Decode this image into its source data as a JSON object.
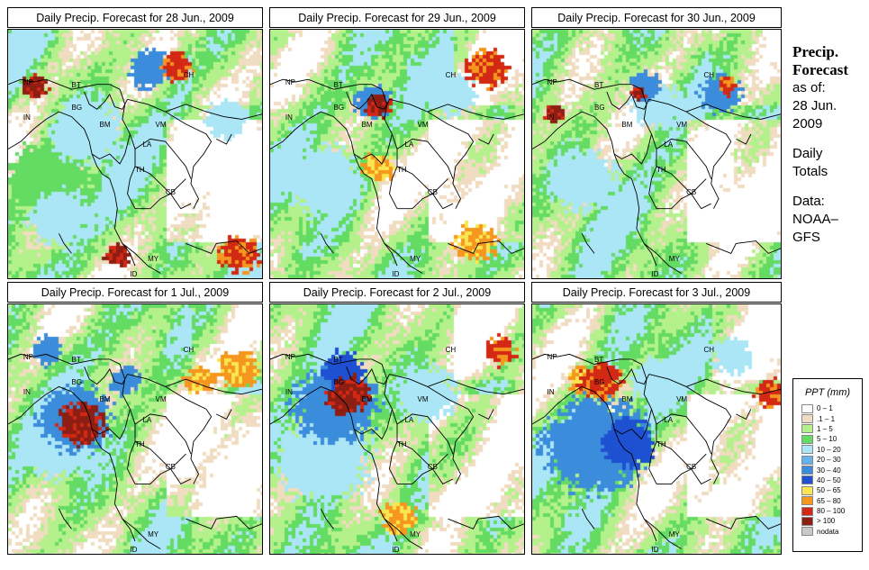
{
  "panels": [
    {
      "title": "Daily Precip. Forecast for  28 Jun., 2009",
      "seed": 11,
      "variant": "a"
    },
    {
      "title": "Daily Precip. Forecast for  29 Jun., 2009",
      "seed": 23,
      "variant": "b"
    },
    {
      "title": "Daily Precip. Forecast for  30 Jun., 2009",
      "seed": 37,
      "variant": "c"
    },
    {
      "title": "Daily Precip. Forecast for  1 Jul., 2009",
      "seed": 41,
      "variant": "d"
    },
    {
      "title": "Daily Precip. Forecast for  2 Jul., 2009",
      "seed": 53,
      "variant": "e"
    },
    {
      "title": "Daily Precip. Forecast for  3 Jul., 2009",
      "seed": 67,
      "variant": "f"
    }
  ],
  "country_labels": [
    {
      "text": "NP"
    },
    {
      "text": "BT"
    },
    {
      "text": "IN"
    },
    {
      "text": "BG"
    },
    {
      "text": "CH"
    },
    {
      "text": "BM"
    },
    {
      "text": "VM"
    },
    {
      "text": "LA"
    },
    {
      "text": "TH"
    },
    {
      "text": "CB"
    },
    {
      "text": "MY"
    },
    {
      "text": "ID"
    }
  ],
  "sidebar": {
    "heading1": "Precip.",
    "heading2": "Forecast",
    "asof": "as of:",
    "date1": "28 Jun.",
    "date2": "2009",
    "daily1": "Daily",
    "daily2": "Totals",
    "data1": "Data:",
    "data2": "NOAA–",
    "data3": "GFS"
  },
  "legend": {
    "title": "PPT (mm)",
    "classes": [
      {
        "label": "0 – 1",
        "color": "#ffffff"
      },
      {
        "label": ".1 – 1",
        "color": "#f0dcc0"
      },
      {
        "label": "1 – 5",
        "color": "#b4f08c"
      },
      {
        "label": "5 – 10",
        "color": "#64dc64"
      },
      {
        "label": "10 – 20",
        "color": "#aae6f5"
      },
      {
        "label": "20 – 30",
        "color": "#64b4eb"
      },
      {
        "label": "30 – 40",
        "color": "#3c8cdc"
      },
      {
        "label": "40 – 50",
        "color": "#1e50d2"
      },
      {
        "label": "50 – 65",
        "color": "#fae650"
      },
      {
        "label": "65 – 80",
        "color": "#f5961e"
      },
      {
        "label": "80 – 100",
        "color": "#d22814"
      },
      {
        "label": "> 100",
        "color": "#8c1e14"
      },
      {
        "label": "nodata",
        "color": "#c8c8c8"
      }
    ]
  }
}
